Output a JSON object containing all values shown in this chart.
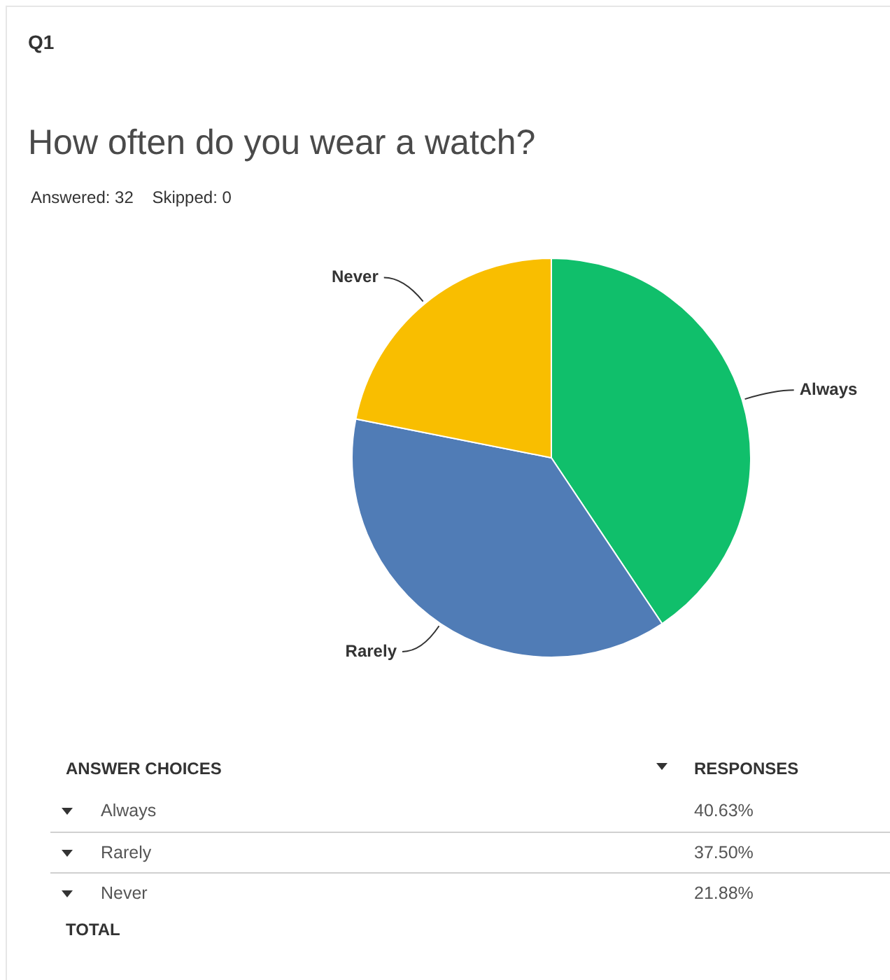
{
  "chart_data": {
    "type": "pie",
    "title": "How often do you wear a watch?",
    "subtitle": "Answered: 32    Skipped: 0",
    "annotations": [
      "Q1",
      "ANSWER CHOICES",
      "RESPONSES",
      "TOTAL",
      "40.63%",
      "37.50%",
      "21.88%"
    ],
    "categories": [
      "Always",
      "Rarely",
      "Never"
    ],
    "values": [
      40.63,
      37.5,
      21.88
    ],
    "colors": [
      "#10bf6b",
      "#507cb6",
      "#f9be00"
    ]
  }
}
